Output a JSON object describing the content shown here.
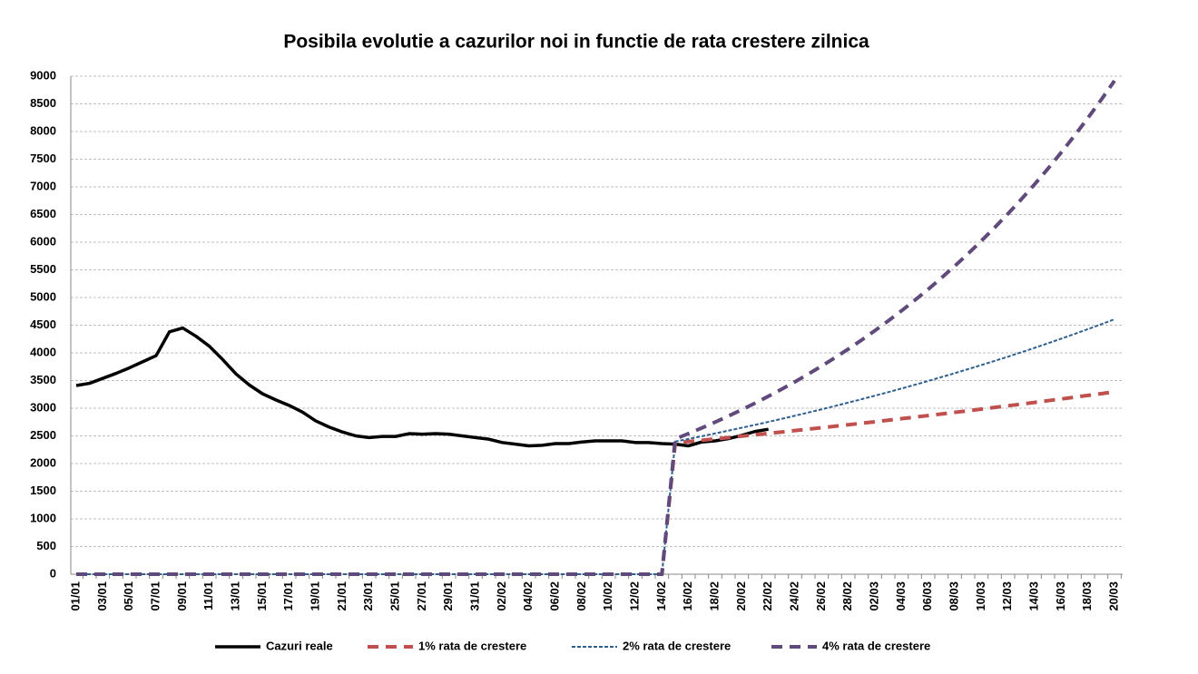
{
  "chart_data": {
    "type": "line",
    "title": "Posibila evolutie a cazurilor noi in functie de rata crestere zilnica",
    "categories": [
      "01/01",
      null,
      "03/01",
      null,
      "05/01",
      null,
      "07/01",
      null,
      "09/01",
      null,
      "11/01",
      null,
      "13/01",
      null,
      "15/01",
      null,
      "17/01",
      null,
      "19/01",
      null,
      "21/01",
      null,
      "23/01",
      null,
      "25/01",
      null,
      "27/01",
      null,
      "29/01",
      null,
      "31/01",
      null,
      "02/02",
      null,
      "04/02",
      null,
      "06/02",
      null,
      "08/02",
      null,
      "10/02",
      null,
      "12/02",
      null,
      "14/02",
      null,
      "16/02",
      null,
      "18/02",
      null,
      "20/02",
      null,
      "22/02",
      null,
      "24/02",
      null,
      "26/02",
      null,
      "28/02",
      null,
      "02/03",
      null,
      "04/03",
      null,
      "06/03",
      null,
      "08/03",
      null,
      "10/03",
      null,
      "12/03",
      null,
      "14/03",
      null,
      "16/03",
      null,
      "18/03",
      null,
      "20/03"
    ],
    "series": [
      {
        "name": "Cazuri reale",
        "color": "#000000",
        "style": "solid",
        "values": [
          3410,
          3450,
          3540,
          3630,
          3730,
          3840,
          3950,
          4380,
          4450,
          4300,
          4120,
          3880,
          3620,
          3420,
          3260,
          3150,
          3050,
          2930,
          2770,
          2660,
          2570,
          2500,
          2470,
          2490,
          2490,
          2540,
          2530,
          2540,
          2530,
          2500,
          2470,
          2440,
          2380,
          2350,
          2320,
          2330,
          2360,
          2360,
          2390,
          2410,
          2410,
          2410,
          2380,
          2380,
          2360,
          2350,
          2320,
          2390,
          2410,
          2450,
          2510,
          2580,
          2620,
          null,
          null,
          null,
          null,
          null,
          null,
          null,
          null,
          null,
          null,
          null,
          null,
          null,
          null,
          null,
          null,
          null,
          null,
          null,
          null,
          null,
          null,
          null,
          null,
          null,
          null
        ]
      },
      {
        "name": "1% rata de crestere",
        "color": "#c0504d",
        "style": "dash",
        "values": [
          0,
          0,
          0,
          0,
          0,
          0,
          0,
          0,
          0,
          0,
          0,
          0,
          0,
          0,
          0,
          0,
          0,
          0,
          0,
          0,
          0,
          0,
          0,
          0,
          0,
          0,
          0,
          0,
          0,
          0,
          0,
          0,
          0,
          0,
          0,
          0,
          0,
          0,
          0,
          0,
          0,
          0,
          0,
          0,
          0,
          2374,
          2397,
          2421,
          2445,
          2470,
          2495,
          2520,
          2545,
          2570,
          2596,
          2622,
          2648,
          2674,
          2701,
          2728,
          2755,
          2783,
          2811,
          2839,
          2867,
          2896,
          2925,
          2954,
          2984,
          3014,
          3044,
          3074,
          3105,
          3136,
          3167,
          3199,
          3231,
          3263,
          3296
        ]
      },
      {
        "name": "2% rata de crestere",
        "color": "#2f5f8f",
        "style": "dot",
        "values": [
          0,
          0,
          0,
          0,
          0,
          0,
          0,
          0,
          0,
          0,
          0,
          0,
          0,
          0,
          0,
          0,
          0,
          0,
          0,
          0,
          0,
          0,
          0,
          0,
          0,
          0,
          0,
          0,
          0,
          0,
          0,
          0,
          0,
          0,
          0,
          0,
          0,
          0,
          0,
          0,
          0,
          0,
          0,
          0,
          0,
          2397,
          2445,
          2494,
          2544,
          2595,
          2647,
          2699,
          2753,
          2808,
          2865,
          2922,
          2980,
          3040,
          3101,
          3163,
          3226,
          3290,
          3356,
          3423,
          3492,
          3562,
          3633,
          3706,
          3780,
          3855,
          3932,
          4011,
          4091,
          4173,
          4257,
          4342,
          4429,
          4517,
          4608
        ]
      },
      {
        "name": "4% rata de crestere",
        "color": "#604a7b",
        "style": "dash",
        "values": [
          0,
          0,
          0,
          0,
          0,
          0,
          0,
          0,
          0,
          0,
          0,
          0,
          0,
          0,
          0,
          0,
          0,
          0,
          0,
          0,
          0,
          0,
          0,
          0,
          0,
          0,
          0,
          0,
          0,
          0,
          0,
          0,
          0,
          0,
          0,
          0,
          0,
          0,
          0,
          0,
          0,
          0,
          0,
          0,
          0,
          2444,
          2542,
          2643,
          2749,
          2859,
          2973,
          3092,
          3216,
          3345,
          3478,
          3618,
          3762,
          3913,
          4069,
          4232,
          4402,
          4578,
          4761,
          4951,
          5149,
          5355,
          5569,
          5792,
          6024,
          6265,
          6515,
          6776,
          7047,
          7329,
          7622,
          7927,
          8244,
          8574,
          8917
        ]
      }
    ],
    "ylim": [
      0,
      9000
    ],
    "yticks": [
      0,
      500,
      1000,
      1500,
      2000,
      2500,
      3000,
      3500,
      4000,
      4500,
      5000,
      5500,
      6000,
      6500,
      7000,
      7500,
      8000,
      8500,
      9000
    ],
    "grid": true,
    "legend": "bottom"
  }
}
